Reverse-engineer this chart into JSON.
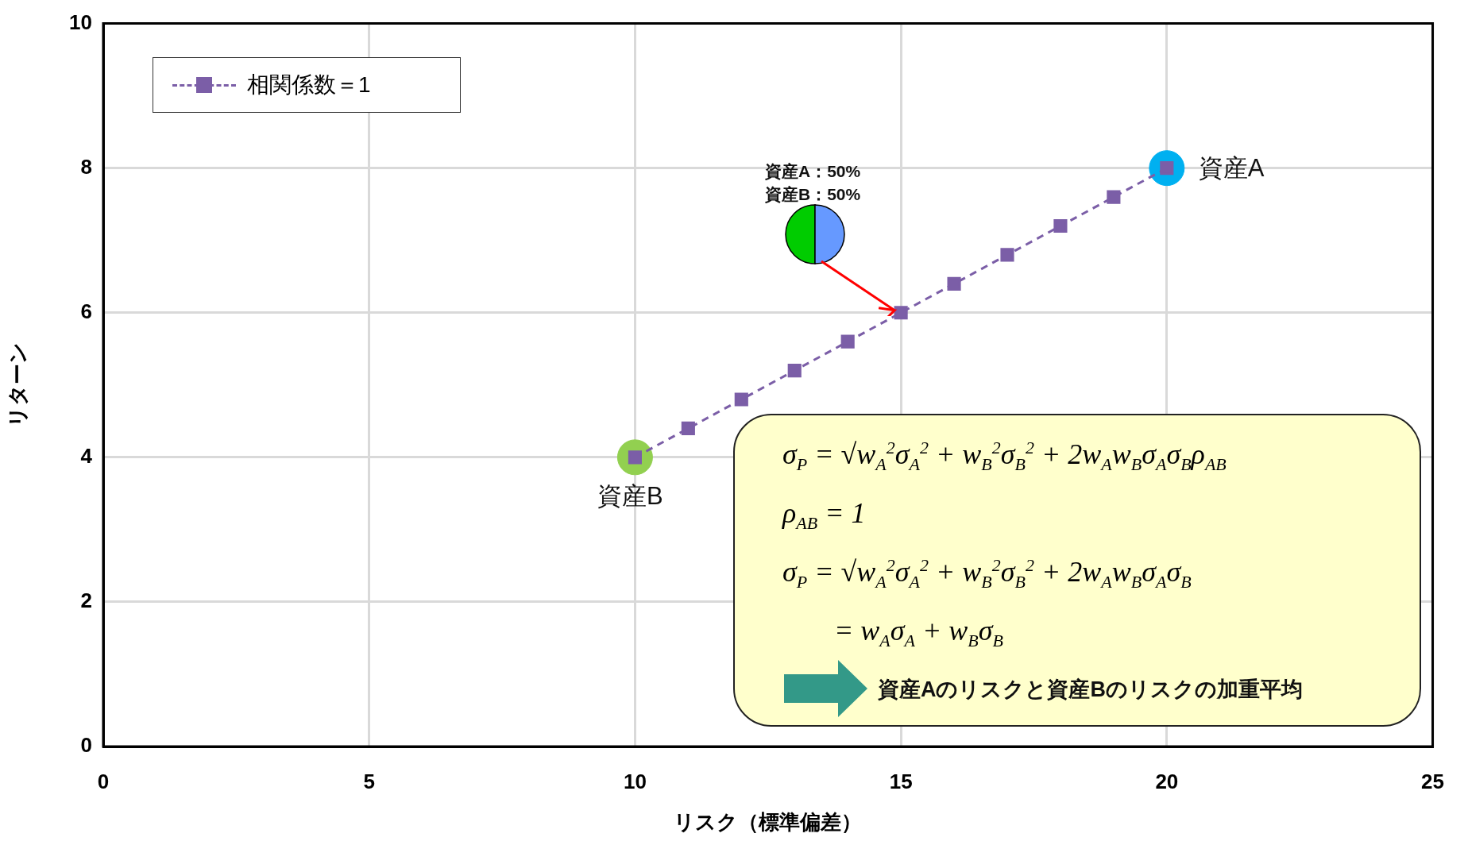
{
  "chart_data": {
    "type": "line",
    "xlabel": "リスク（標準偏差）",
    "ylabel": "リターン",
    "xlim": [
      0,
      25
    ],
    "xticks": [
      0,
      5,
      10,
      15,
      20,
      25
    ],
    "ylim": [
      0,
      10
    ],
    "yticks": [
      0,
      2,
      4,
      6,
      8,
      10
    ],
    "grid": true,
    "legend": "top left",
    "marker": "square",
    "line_style": "dashed",
    "series": [
      {
        "name": "相関係数＝1",
        "color": "#7b5ea7",
        "x": [
          10,
          11,
          12,
          13,
          14,
          15,
          16,
          17,
          18,
          19,
          20
        ],
        "values": [
          4,
          4.4,
          4.8,
          5.2,
          5.6,
          6,
          6.4,
          6.8,
          7.2,
          7.6,
          8
        ]
      },
      {
        "type": "scatter",
        "marker": "circle",
        "color": "#92d050",
        "x": [
          10
        ],
        "values": [
          4
        ]
      },
      {
        "type": "scatter",
        "marker": "circle",
        "color": "#00b0f0",
        "x": [
          20
        ],
        "values": [
          8
        ]
      }
    ],
    "annotations": [
      {
        "text": "資産A",
        "x": 20,
        "y": 8
      },
      {
        "text": "資産B",
        "x": 10,
        "y": 4
      },
      "資産A：50%",
      "資産B：50%",
      "σ$_{P}$ = √w$_{A}$$^{2}$σ$_{A}$$^{2}$ + w$_{B}$$^{2}$σ$_{B}$$^{2}$ + 2w$_{A}$w$_{B}$σ$_{A}$σ$_{B}$ρ$_{AB}$",
      "ρ$_{AB}$ = 1",
      "σ$_{P}$ = √w$_{A}$$^{2}$σ$_{A}$$^{2}$ + w$_{B}$$^{2}$σ$_{B}$$^{2}$ + 2w$_{A}$w$_{B}$σ$_{A}$σ$_{B}$",
      "= w$_{A}$σ$_{A}$ + w$_{B}$σ$_{B}$",
      "資産Aのリスクと資産Bのリスクの加重平均"
    ]
  }
}
